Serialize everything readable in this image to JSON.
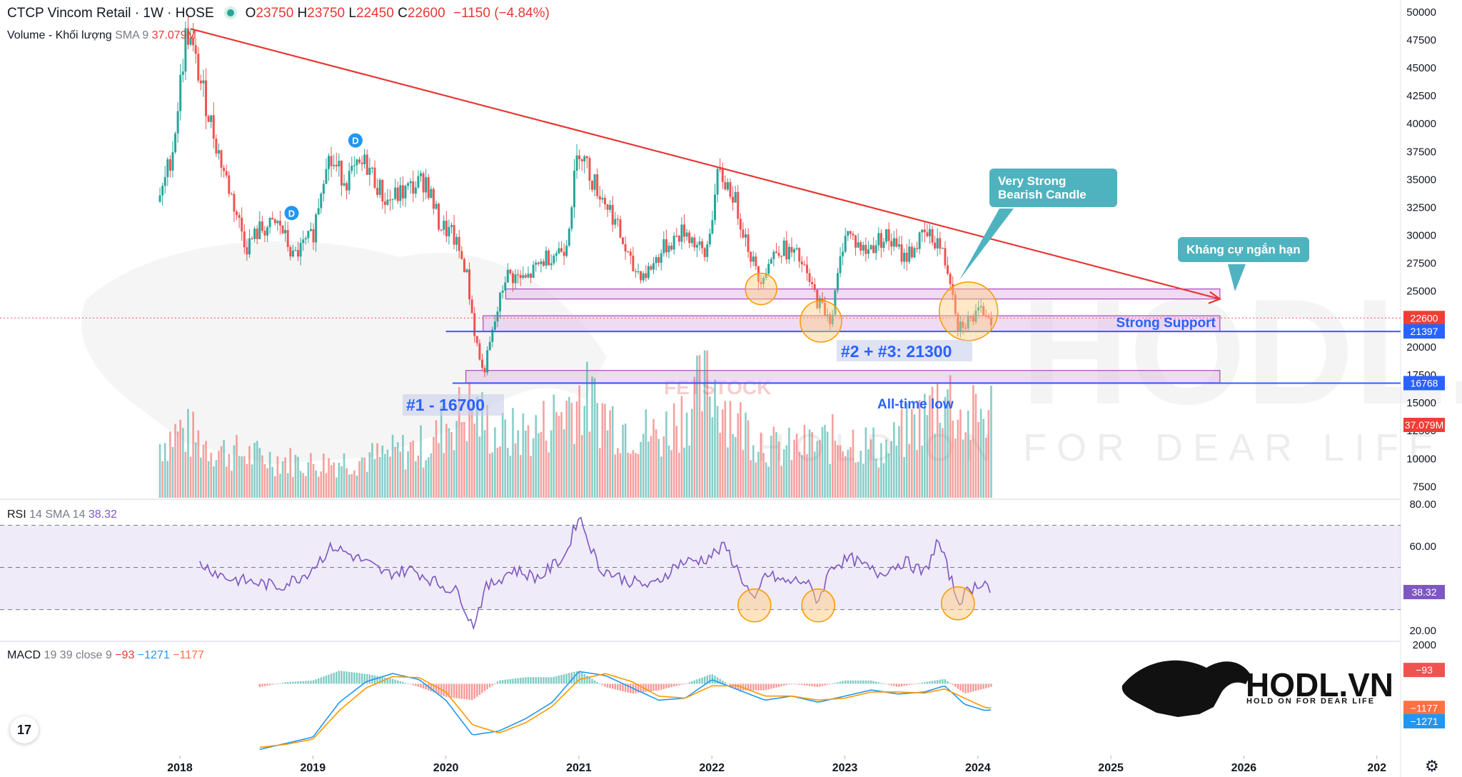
{
  "header": {
    "title": "CTCP Vincom Retail · 1W · HOSE",
    "open_label": "O",
    "open": "23750",
    "high_label": "H",
    "high": "23750",
    "low_label": "L",
    "low": "22450",
    "close_label": "C",
    "close": "22600",
    "change": "−1150 (−4.84%)",
    "volume_label": "Volume - Khối lượng",
    "volume_sma": "SMA 9",
    "volume_value": "37.079M"
  },
  "rsi_header": {
    "label": "RSI",
    "params": "14 SMA 14",
    "value": "38.32"
  },
  "macd_header": {
    "label": "MACD",
    "params": "19 39 close 9",
    "v1": "−93",
    "v2": "−1271",
    "v3": "−1177"
  },
  "annotations": {
    "callout_bearish": "Very Strong Bearish Candle",
    "callout_resistance": "Kháng cự ngắn hạn",
    "strong_support": "Strong Support",
    "level_23": "#2 + #3: 21300",
    "level_1": "#1 - 16700",
    "all_time_low": "All-time low",
    "ind_d1": "D",
    "ind_d2": "D"
  },
  "watermark": {
    "text": "HODL.VN",
    "tagline": "HOLD ON FOR DEAR LIFE",
    "mid": "FETSTOCK"
  },
  "logo": {
    "text": "HODL.VN",
    "tagline": "HOLD ON FOR DEAR LIFE"
  },
  "tv_logo": "17",
  "gear_icon": "⚙",
  "colors": {
    "up": "#26a69a",
    "down": "#ef5350",
    "trend": "#e53935",
    "support": "#2962ff",
    "zone": "#e1bee7",
    "rsi": "#7e57c2",
    "macd": "#2196f3",
    "signal": "#ff9800"
  },
  "chart_data": [
    {
      "type": "candlestick",
      "title": "CTCP Vincom Retail · 1W · HOSE",
      "x_ticks": [
        "2018",
        "2019",
        "2020",
        "2021",
        "2022",
        "2023",
        "2024",
        "2025",
        "2026",
        "202"
      ],
      "y_ticks": [
        50000,
        47500,
        45000,
        42500,
        40000,
        37500,
        35000,
        32500,
        30000,
        27500,
        25000,
        22500,
        20000,
        17500,
        15000,
        12500,
        10000,
        7500
      ],
      "y_tick_labels": [
        "50000",
        "47500",
        "45000",
        "42500",
        "40000",
        "37500",
        "35000",
        "32500",
        "30000",
        "27500",
        "25000",
        "22500",
        "20000",
        "17500",
        "15000",
        "12500",
        "10000",
        "7500"
      ],
      "ylim": [
        6500,
        50500
      ],
      "price_anchors": {
        "t": [
          2017.85,
          2017.95,
          2018.05,
          2018.15,
          2018.3,
          2018.5,
          2018.6,
          2018.75,
          2018.85,
          2019.0,
          2019.1,
          2019.25,
          2019.4,
          2019.55,
          2019.7,
          2019.85,
          2019.95,
          2020.05,
          2020.15,
          2020.22,
          2020.28,
          2020.45,
          2020.6,
          2020.75,
          2020.9,
          2021.0,
          2021.1,
          2021.25,
          2021.4,
          2021.5,
          2021.65,
          2021.8,
          2021.95,
          2022.05,
          2022.15,
          2022.25,
          2022.35,
          2022.5,
          2022.65,
          2022.8,
          2022.9,
          2023.0,
          2023.15,
          2023.3,
          2023.45,
          2023.6,
          2023.7,
          2023.8,
          2023.85,
          2023.95,
          2024.05,
          2024.1
        ],
        "close": [
          33000,
          38000,
          48500,
          44000,
          37000,
          29000,
          30500,
          31000,
          28000,
          30000,
          37000,
          35000,
          36500,
          33000,
          34000,
          35000,
          31000,
          30000,
          27000,
          21000,
          17500,
          26500,
          26000,
          28000,
          29000,
          38000,
          35000,
          32000,
          27000,
          26500,
          29000,
          30500,
          28000,
          35500,
          34000,
          30000,
          26000,
          29000,
          28000,
          24000,
          22500,
          30500,
          28500,
          30000,
          28000,
          30000,
          29500,
          26000,
          22000,
          22500,
          23300,
          22600
        ]
      },
      "volume_anchors": {
        "t": [
          2017.85,
          2018.0,
          2018.3,
          2018.6,
          2019.0,
          2019.5,
          2019.9,
          2020.0,
          2020.2,
          2020.4,
          2020.7,
          2021.0,
          2021.3,
          2021.6,
          2022.0,
          2022.2,
          2022.5,
          2022.8,
          2023.0,
          2023.3,
          2023.6,
          2023.75,
          2023.9,
          2024.1
        ],
        "volume": [
          8,
          10,
          7,
          6,
          5,
          6,
          8,
          11,
          13,
          9,
          10,
          15,
          11,
          9,
          17,
          11,
          7,
          8,
          9,
          7,
          12,
          16,
          11,
          13
        ]
      },
      "last_price": "22600",
      "last_volume": "37.079M",
      "levels": [
        {
          "label": "21397",
          "value": 21397
        },
        {
          "label": "16768",
          "value": 16768
        }
      ],
      "trendline": {
        "from": {
          "t": 2018.08,
          "price": 48500
        },
        "to": {
          "t": 2025.82,
          "price": 24300
        }
      },
      "zones": [
        {
          "name": "resistance",
          "from_t": 2020.45,
          "to_t": 2025.82,
          "low": 24300,
          "high": 25200
        },
        {
          "name": "strong-support",
          "from_t": 2020.28,
          "to_t": 2025.82,
          "low": 21400,
          "high": 22800
        },
        {
          "name": "all-time-low",
          "from_t": 2020.15,
          "to_t": 2025.82,
          "low": 16800,
          "high": 17900
        }
      ],
      "marked_lows": [
        {
          "t": 2022.37,
          "price": 25200
        },
        {
          "t": 2022.82,
          "price": 22300
        },
        {
          "t": 2023.93,
          "price": 23200
        }
      ],
      "dividend_markers": [
        {
          "t": 2019.32,
          "price": 38500
        },
        {
          "t": 2018.84,
          "price": 32000
        }
      ]
    },
    {
      "type": "line",
      "title": "RSI",
      "y_ticks": [
        80,
        60,
        20
      ],
      "y_tick_labels": [
        "80.00",
        "60.00",
        "20.00"
      ],
      "ylim": [
        16,
        82
      ],
      "bands": [
        70,
        50,
        30
      ],
      "x": [
        2018.15,
        2018.35,
        2018.55,
        2018.75,
        2018.95,
        2019.15,
        2019.35,
        2019.55,
        2019.75,
        2019.95,
        2020.1,
        2020.2,
        2020.3,
        2020.5,
        2020.7,
        2020.9,
        2021.0,
        2021.15,
        2021.35,
        2021.55,
        2021.75,
        2021.95,
        2022.1,
        2022.3,
        2022.32,
        2022.4,
        2022.55,
        2022.7,
        2022.8,
        2022.9,
        2023.05,
        2023.25,
        2023.45,
        2023.6,
        2023.7,
        2023.8,
        2023.85,
        2023.95,
        2024.05,
        2024.1
      ],
      "values": [
        52,
        45,
        43,
        41,
        47,
        60,
        54,
        47,
        49,
        42,
        38,
        22,
        40,
        49,
        45,
        56,
        75,
        50,
        44,
        41,
        52,
        54,
        60,
        36,
        32,
        47,
        43,
        44,
        34,
        51,
        54,
        47,
        53,
        47,
        63,
        44,
        34,
        40,
        44,
        38
      ]
    },
    {
      "type": "line",
      "title": "MACD",
      "y_ticks": [
        2000
      ],
      "y_tick_labels": [
        "2000"
      ],
      "ylim": [
        -3500,
        2000
      ],
      "macd": {
        "t": [
          2018.6,
          2018.8,
          2019.0,
          2019.2,
          2019.4,
          2019.6,
          2019.8,
          2020.0,
          2020.2,
          2020.4,
          2020.6,
          2020.8,
          2021.0,
          2021.2,
          2021.4,
          2021.6,
          2021.8,
          2022.0,
          2022.2,
          2022.4,
          2022.6,
          2022.8,
          2023.0,
          2023.2,
          2023.4,
          2023.6,
          2023.75,
          2023.9,
          2024.05,
          2024.1
        ],
        "values": [
          -3200,
          -2900,
          -2600,
          -900,
          100,
          500,
          200,
          -800,
          -2500,
          -2300,
          -1700,
          -900,
          600,
          400,
          -200,
          -800,
          -700,
          200,
          -300,
          -800,
          -600,
          -900,
          -600,
          -300,
          -500,
          -400,
          -100,
          -1000,
          -1300,
          -1271
        ]
      },
      "signal": {
        "t": [
          2018.6,
          2018.8,
          2019.0,
          2019.2,
          2019.4,
          2019.6,
          2019.8,
          2020.0,
          2020.2,
          2020.4,
          2020.6,
          2020.8,
          2021.0,
          2021.2,
          2021.4,
          2021.6,
          2021.8,
          2022.0,
          2022.2,
          2022.4,
          2022.6,
          2022.8,
          2023.0,
          2023.2,
          2023.4,
          2023.6,
          2023.75,
          2023.9,
          2024.05,
          2024.1
        ],
        "values": [
          -3100,
          -2950,
          -2700,
          -1300,
          -200,
          350,
          300,
          -400,
          -2000,
          -2400,
          -1900,
          -1100,
          200,
          500,
          100,
          -600,
          -700,
          -100,
          -100,
          -600,
          -600,
          -800,
          -700,
          -400,
          -400,
          -450,
          -250,
          -700,
          -1150,
          -1177
        ]
      },
      "current_labels": [
        {
          "label": "−93",
          "value": -93
        },
        {
          "label": "−1177",
          "value": -1177
        },
        {
          "label": "−1271",
          "value": -1271
        }
      ]
    }
  ]
}
